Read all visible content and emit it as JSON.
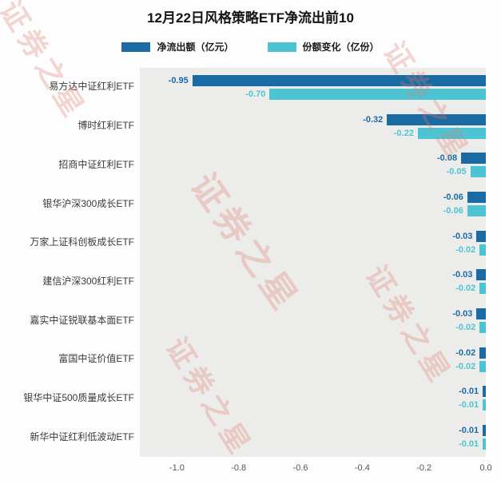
{
  "title": "12月22日风格策略ETF净流出前10",
  "watermark": "证券之星",
  "legend": [
    {
      "label": "净流出额（亿元）",
      "color": "#1a6ba3"
    },
    {
      "label": "份额变化（亿份）",
      "color": "#4cc4d4"
    }
  ],
  "chart_data": {
    "type": "bar",
    "orientation": "horizontal",
    "title": "12月22日风格策略ETF净流出前10",
    "categories": [
      "易方达中证红利ETF",
      "博时红利ETF",
      "招商中证红利ETF",
      "银华沪深300成长ETF",
      "万家上证科创板成长ETF",
      "建信沪深300红利ETF",
      "嘉实中证锐联基本面ETF",
      "富国中证价值ETF",
      "银华中证500质量成长ETF",
      "新华中证红利低波动ETF"
    ],
    "series": [
      {
        "name": "净流出额（亿元）",
        "color": "#1a6ba3",
        "values": [
          -0.95,
          -0.32,
          -0.08,
          -0.06,
          -0.03,
          -0.03,
          -0.03,
          -0.02,
          -0.01,
          -0.01
        ]
      },
      {
        "name": "份额变化（亿份）",
        "color": "#4cc4d4",
        "values": [
          -0.7,
          -0.22,
          -0.05,
          -0.06,
          -0.02,
          -0.02,
          -0.02,
          -0.02,
          -0.01,
          -0.01
        ]
      }
    ],
    "xlim": [
      -1.12,
      0
    ],
    "x_ticks": [
      "-1.0",
      "-0.8",
      "-0.6",
      "-0.4",
      "-0.2",
      "0.0"
    ],
    "grid": false,
    "legend_position": "top"
  }
}
